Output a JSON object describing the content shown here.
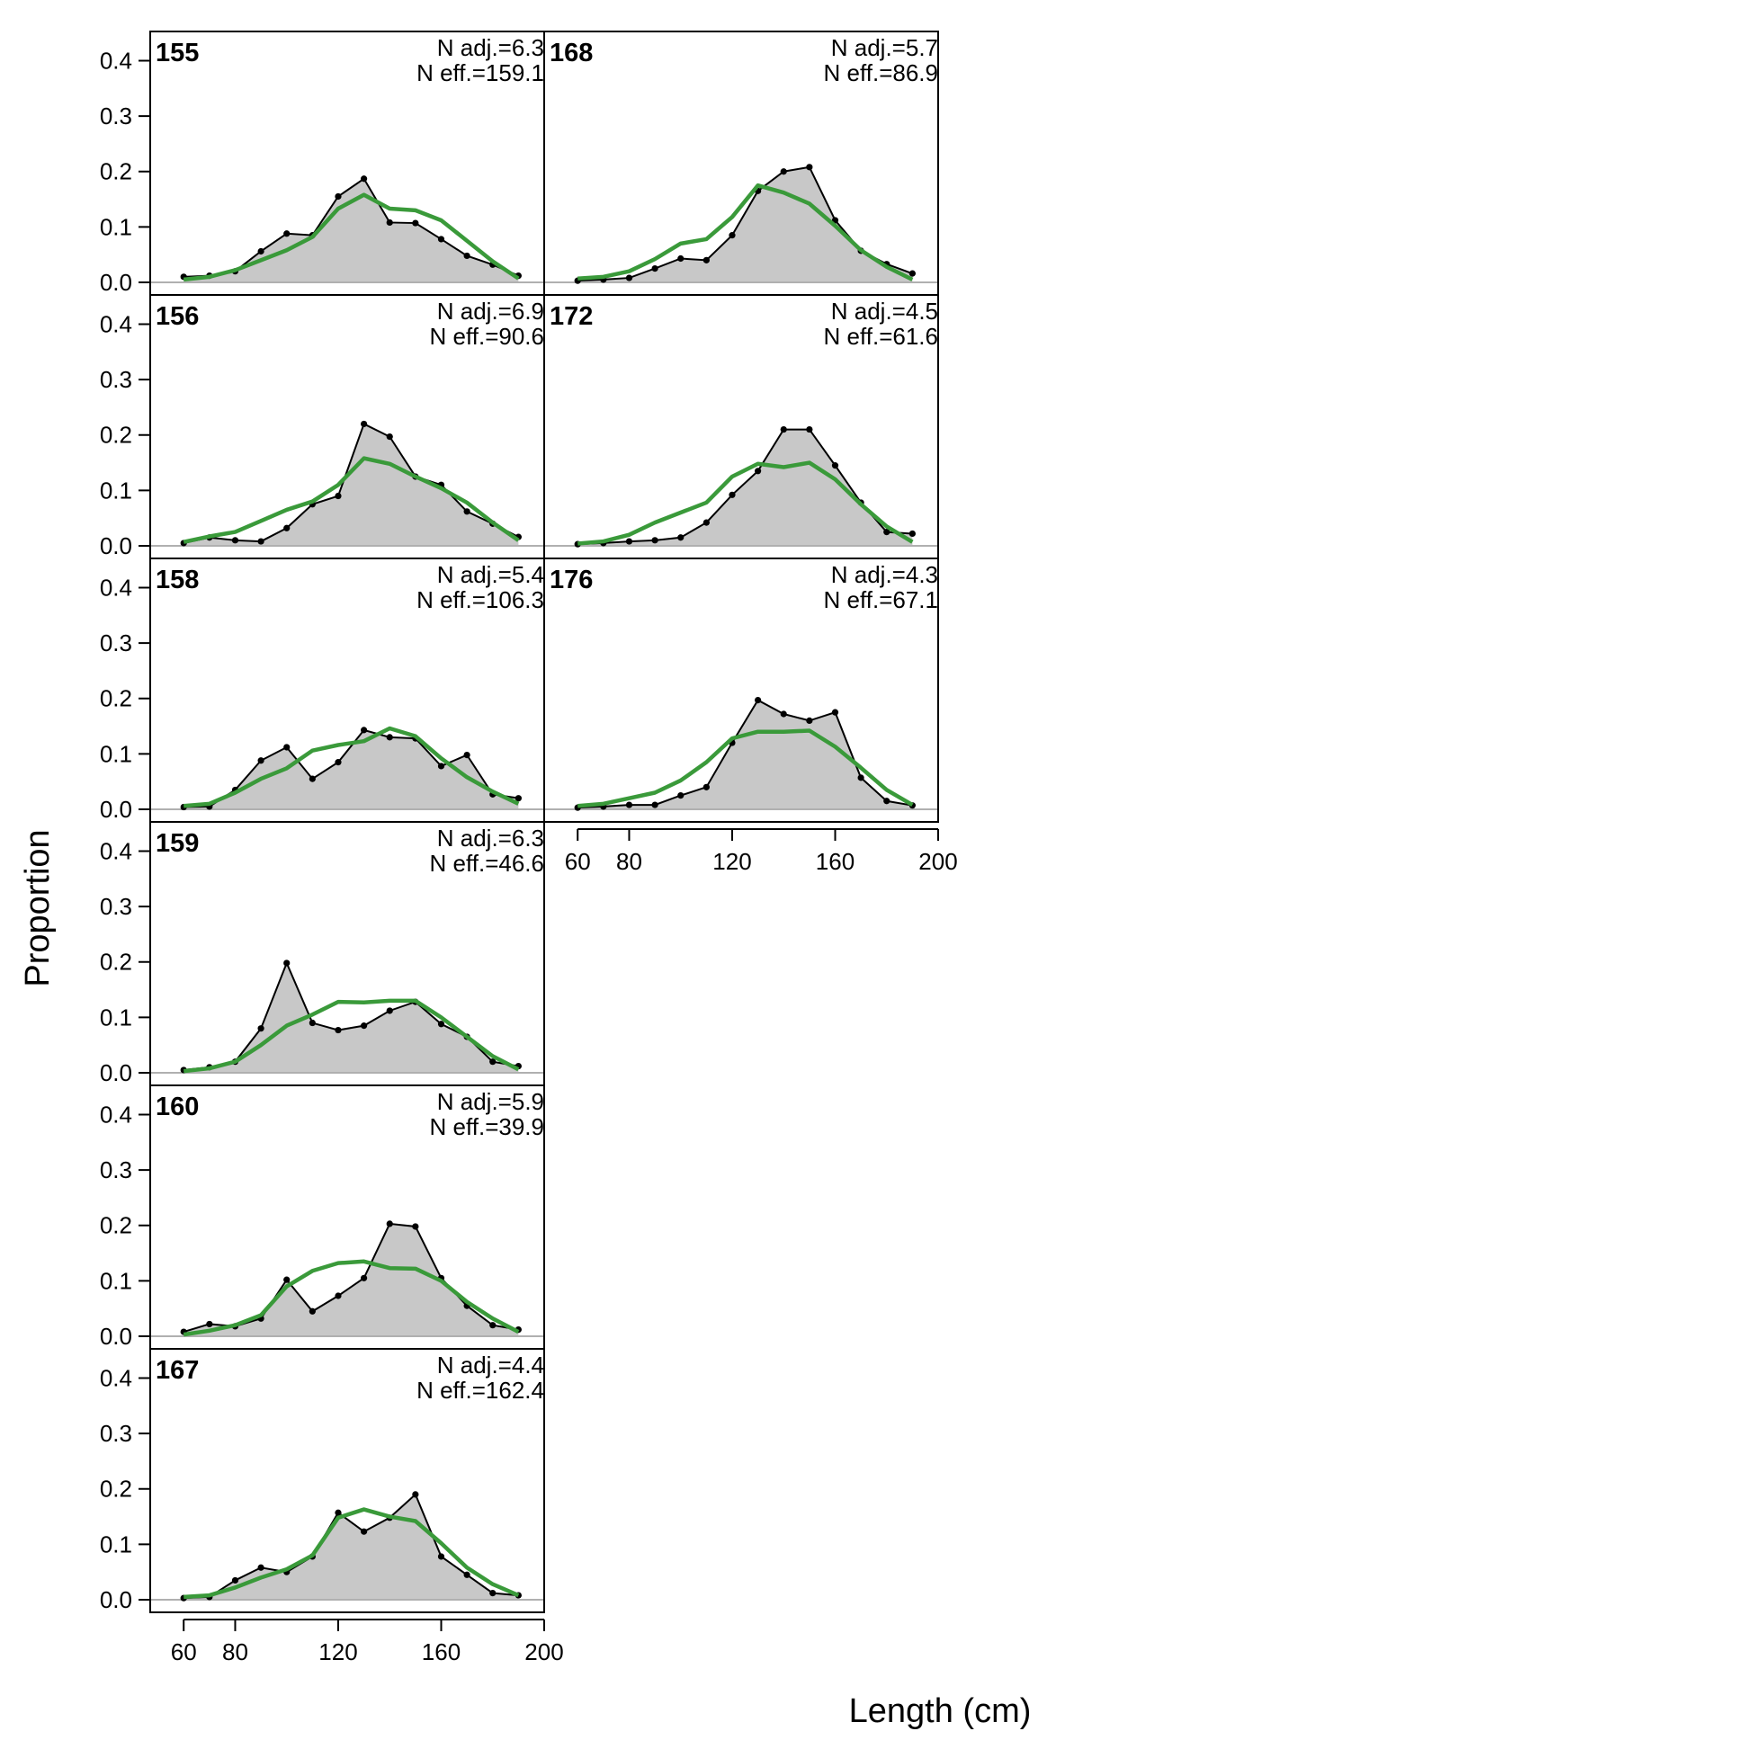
{
  "figure": {
    "xlabel": "Length (cm)",
    "ylabel": "Proportion",
    "colors": {
      "observed_line": "#000000",
      "observed_fill": "#c8c8c8",
      "expected_line": "#3a9a3a",
      "zero_line": "#b0b0b0",
      "frame": "#000000"
    }
  },
  "chart_data": {
    "type": "area",
    "x": [
      60,
      70,
      80,
      90,
      100,
      110,
      120,
      130,
      140,
      150,
      160,
      170,
      180,
      190
    ],
    "xlim": [
      47,
      200
    ],
    "ylim": [
      0,
      0.43
    ],
    "xticks": [
      60,
      80,
      120,
      160,
      200
    ],
    "yticks": [
      0.0,
      0.1,
      0.2,
      0.3,
      0.4
    ],
    "ytick_labels": [
      "0.0",
      "0.1",
      "0.2",
      "0.3",
      "0.4"
    ],
    "grid": false,
    "panels": [
      {
        "year": "155",
        "n_adj": "N adj.=6.3",
        "n_eff": "N eff.=159.1",
        "observed": [
          0.01,
          0.012,
          0.02,
          0.056,
          0.088,
          0.085,
          0.155,
          0.187,
          0.108,
          0.107,
          0.078,
          0.048,
          0.032,
          0.012
        ],
        "expected": [
          0.005,
          0.01,
          0.022,
          0.04,
          0.058,
          0.082,
          0.133,
          0.158,
          0.133,
          0.13,
          0.112,
          0.075,
          0.038,
          0.007
        ]
      },
      {
        "year": "168",
        "n_adj": "N adj.=5.7",
        "n_eff": "N eff.=86.9",
        "observed": [
          0.003,
          0.005,
          0.008,
          0.025,
          0.043,
          0.04,
          0.085,
          0.165,
          0.2,
          0.208,
          0.112,
          0.057,
          0.033,
          0.016
        ],
        "expected": [
          0.007,
          0.01,
          0.02,
          0.042,
          0.07,
          0.078,
          0.118,
          0.175,
          0.162,
          0.142,
          0.102,
          0.058,
          0.028,
          0.005
        ]
      },
      {
        "year": "156",
        "n_adj": "N adj.=6.9",
        "n_eff": "N eff.=90.6",
        "observed": [
          0.005,
          0.015,
          0.01,
          0.008,
          0.032,
          0.075,
          0.09,
          0.22,
          0.197,
          0.125,
          0.11,
          0.062,
          0.04,
          0.016
        ],
        "expected": [
          0.007,
          0.017,
          0.025,
          0.045,
          0.065,
          0.08,
          0.11,
          0.158,
          0.148,
          0.125,
          0.104,
          0.078,
          0.042,
          0.01
        ]
      },
      {
        "year": "172",
        "n_adj": "N adj.=4.5",
        "n_eff": "N eff.=61.6",
        "observed": [
          0.003,
          0.005,
          0.008,
          0.01,
          0.015,
          0.042,
          0.092,
          0.135,
          0.21,
          0.21,
          0.145,
          0.078,
          0.025,
          0.022
        ],
        "expected": [
          0.004,
          0.008,
          0.02,
          0.042,
          0.06,
          0.078,
          0.125,
          0.148,
          0.142,
          0.15,
          0.12,
          0.075,
          0.035,
          0.007
        ]
      },
      {
        "year": "158",
        "n_adj": "N adj.=5.4",
        "n_eff": "N eff.=106.3",
        "observed": [
          0.004,
          0.005,
          0.035,
          0.088,
          0.112,
          0.055,
          0.085,
          0.143,
          0.13,
          0.128,
          0.078,
          0.098,
          0.027,
          0.02
        ],
        "expected": [
          0.006,
          0.01,
          0.03,
          0.055,
          0.074,
          0.106,
          0.116,
          0.123,
          0.146,
          0.132,
          0.092,
          0.058,
          0.032,
          0.01
        ]
      },
      {
        "year": "176",
        "n_adj": "N adj.=4.3",
        "n_eff": "N eff.=67.1",
        "observed": [
          0.003,
          0.005,
          0.008,
          0.008,
          0.025,
          0.04,
          0.12,
          0.197,
          0.172,
          0.16,
          0.175,
          0.057,
          0.015,
          0.007
        ],
        "expected": [
          0.006,
          0.01,
          0.02,
          0.03,
          0.052,
          0.085,
          0.128,
          0.14,
          0.14,
          0.142,
          0.113,
          0.075,
          0.035,
          0.008
        ]
      },
      {
        "year": "159",
        "n_adj": "N adj.=6.3",
        "n_eff": "N eff.=46.6",
        "observed": [
          0.005,
          0.01,
          0.02,
          0.08,
          0.198,
          0.09,
          0.077,
          0.085,
          0.112,
          0.128,
          0.088,
          0.065,
          0.02,
          0.012
        ],
        "expected": [
          0.003,
          0.008,
          0.02,
          0.05,
          0.085,
          0.105,
          0.128,
          0.127,
          0.13,
          0.13,
          0.1,
          0.065,
          0.03,
          0.006
        ]
      },
      {
        "year": "160",
        "n_adj": "N adj.=5.9",
        "n_eff": "N eff.=39.9",
        "observed": [
          0.008,
          0.022,
          0.018,
          0.032,
          0.102,
          0.045,
          0.073,
          0.105,
          0.203,
          0.198,
          0.105,
          0.055,
          0.02,
          0.012
        ],
        "expected": [
          0.003,
          0.01,
          0.02,
          0.038,
          0.09,
          0.118,
          0.132,
          0.135,
          0.123,
          0.122,
          0.1,
          0.062,
          0.032,
          0.008
        ]
      },
      {
        "year": "167",
        "n_adj": "N adj.=4.4",
        "n_eff": "N eff.=162.4",
        "observed": [
          0.003,
          0.005,
          0.035,
          0.058,
          0.05,
          0.078,
          0.157,
          0.123,
          0.148,
          0.19,
          0.078,
          0.045,
          0.012,
          0.008
        ],
        "expected": [
          0.005,
          0.008,
          0.022,
          0.04,
          0.055,
          0.08,
          0.148,
          0.163,
          0.15,
          0.142,
          0.102,
          0.058,
          0.028,
          0.008
        ]
      }
    ]
  }
}
